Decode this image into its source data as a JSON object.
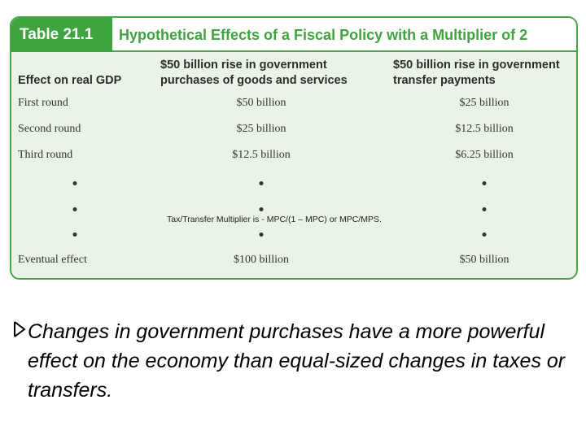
{
  "table": {
    "tag": "Table 21.1",
    "title": "Hypothetical Effects of a Fiscal Policy with a Multiplier of 2",
    "headers": {
      "effect": "Effect on real GDP",
      "purchases_line1": "$50 billion rise in government",
      "purchases_line2": "purchases of goods and services",
      "transfers_line1": "$50 billion rise in government",
      "transfers_line2": "transfer payments"
    },
    "rows": [
      {
        "label": "First round",
        "purchases": "$50 billion",
        "transfers": "$25 billion"
      },
      {
        "label": "Second round",
        "purchases": "$25 billion",
        "transfers": "$12.5 billion"
      },
      {
        "label": "Third round",
        "purchases": "$12.5 billion",
        "transfers": "$6.25 billion"
      }
    ],
    "eventual": {
      "label": "Eventual effect",
      "purchases": "$100 billion",
      "transfers": "$50 billion"
    }
  },
  "overlay_note": "Tax/Transfer Multiplier is - MPC/(1 – MPC) or MPC/MPS.",
  "bullet": {
    "icon": "arrow-bullet-icon",
    "text": "Changes in government purchases have a more powerful effect on the economy than equal-sized changes in taxes or transfers."
  }
}
